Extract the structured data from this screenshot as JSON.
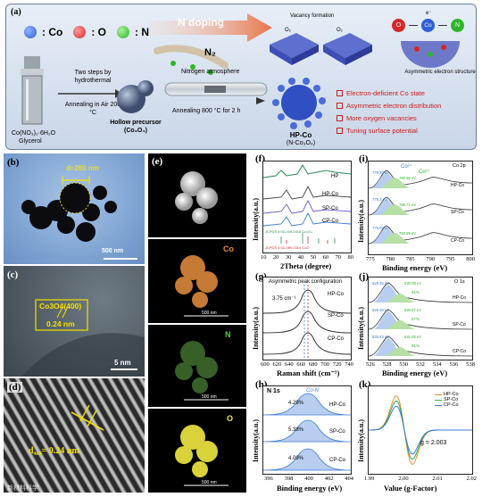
{
  "panel_a": {
    "label": "(a)",
    "legend": {
      "co": ": Co",
      "o": ": O",
      "n": ": N"
    },
    "n_doping": "N doping",
    "vacancy": "Vacancy formation",
    "o2_a": "O₂",
    "o2_b": "O₂",
    "asym_struct": "Asymmetric electron structure",
    "chain_co": "Co",
    "chain_o": "O",
    "chain_n": "N",
    "chain_e": "e⁻",
    "steps": "Two steps by hydrothermal",
    "anneal_air": "Annealing in Air 200 °C",
    "precursor_line1": "Co(NO₃)₂·6H₂O",
    "precursor_line2": "Glycerol",
    "hollow_line1": "Hollow precursor",
    "hollow_line2": "(Co₃O₄)",
    "n2": "N₂",
    "n2_atm": "Nitrogen atmosphere",
    "anneal_n2": "Annealing 800 °C for 2 h",
    "hp_line1": "HP-Co",
    "hp_line2": "(N-Co₃O₄)",
    "bullets": [
      "Electron-deficient Co state",
      "Asymmetric electron distribution",
      "More oxygen vacancies",
      "Tuning surface potential"
    ]
  },
  "panel_b": {
    "label": "(b)",
    "d": "d≈260 nm",
    "scale": "500 nm"
  },
  "panel_c": {
    "label": "(c)",
    "plane": "Co3O4(400)",
    "spacing": "0.24 nm",
    "scale": "5 nm"
  },
  "panel_d": {
    "label": "(d)",
    "spacing": "d₄₀₀= 0.24 nm"
  },
  "panel_e": {
    "label": "(e)",
    "co": "Co",
    "n": "N",
    "o": "O",
    "scale1": "500 nm",
    "scale2": "500 nm",
    "scale3": "500 nm"
  },
  "panel_f": {
    "label": "(f)",
    "ylabel": "Intensity(a.u.)",
    "xlabel": "2Theta (degree)",
    "series": [
      "HP",
      "HP-Co",
      "SP-Co",
      "CP-Co"
    ],
    "ref1": "JCPDS # 00-009-0418 Co₃O₄",
    "ref2": "JCPDS # 01-089-0314 CoO",
    "xticks": [
      "10",
      "20",
      "30",
      "40",
      "50",
      "60",
      "70",
      "80"
    ]
  },
  "panel_g": {
    "label": "(g)",
    "ylabel": "Intensity(a.u.)",
    "xlabel": "Raman shift (cm⁻¹)",
    "title": "Asymmetric peak configuration",
    "shift": "3.75 cm⁻¹",
    "series": [
      "HP-Co",
      "SP-Co",
      "CP-Co"
    ],
    "xticks": [
      "600",
      "620",
      "640",
      "660",
      "680",
      "700",
      "720",
      "740"
    ]
  },
  "panel_h": {
    "label": "(h)",
    "title": "N 1s",
    "ylabel": "Intensity(a.u.)",
    "xlabel": "Binding energy (eV)",
    "peak": "Co-N",
    "pct": [
      "4.29%",
      "5.38%",
      "4.09%"
    ],
    "series": [
      "HP-Co",
      "SP-Co",
      "CP-Co"
    ],
    "xticks": [
      "396",
      "398",
      "400",
      "402",
      "404"
    ]
  },
  "panel_i": {
    "label": "(i)",
    "title": "Co 2p",
    "ylabel": "Intensity(a.u.)",
    "xlabel": "Binding energy (eV)",
    "co3": "Co³⁺",
    "co2": "Co²⁺",
    "series": [
      "HP-Co",
      "SP-Co",
      "CP-Co"
    ],
    "peaks": [
      "779.35 eV",
      "780.98 eV",
      "779.3 eV",
      "780.71 eV",
      "779.09 eV",
      "780.89 eV"
    ],
    "xticks": [
      "775",
      "780",
      "785",
      "790",
      "795",
      "800"
    ]
  },
  "panel_j": {
    "label": "(j)",
    "title": "O 1s",
    "ylabel": "Intensity(a.u.)",
    "xlabel": "Binding energy (eV)",
    "series": [
      "HP-Co",
      "SP-Co",
      "CP-Co"
    ],
    "peaks": [
      "529.35 eV",
      "530.98 eV",
      "529.38 eV",
      "530.87 eV",
      "529.43 eV",
      "531.05 eV"
    ],
    "pct": [
      "61%",
      "57%",
      "51%"
    ],
    "xticks": [
      "526",
      "528",
      "530",
      "532",
      "534",
      "536",
      "538"
    ]
  },
  "panel_k": {
    "label": "(k)",
    "ylabel": "Intensity(a.u.)",
    "xlabel": "Value (g-Factor)",
    "g": "g = 2.003",
    "legend": [
      "HP-Co",
      "SP-Co",
      "CP-Co"
    ],
    "colors": [
      "#f08a2c",
      "#2ca85a",
      "#3b7bd6"
    ],
    "xticks": [
      "1.99",
      "2.00",
      "2.01",
      "2.02"
    ]
  },
  "watermark": "新材料科学"
}
